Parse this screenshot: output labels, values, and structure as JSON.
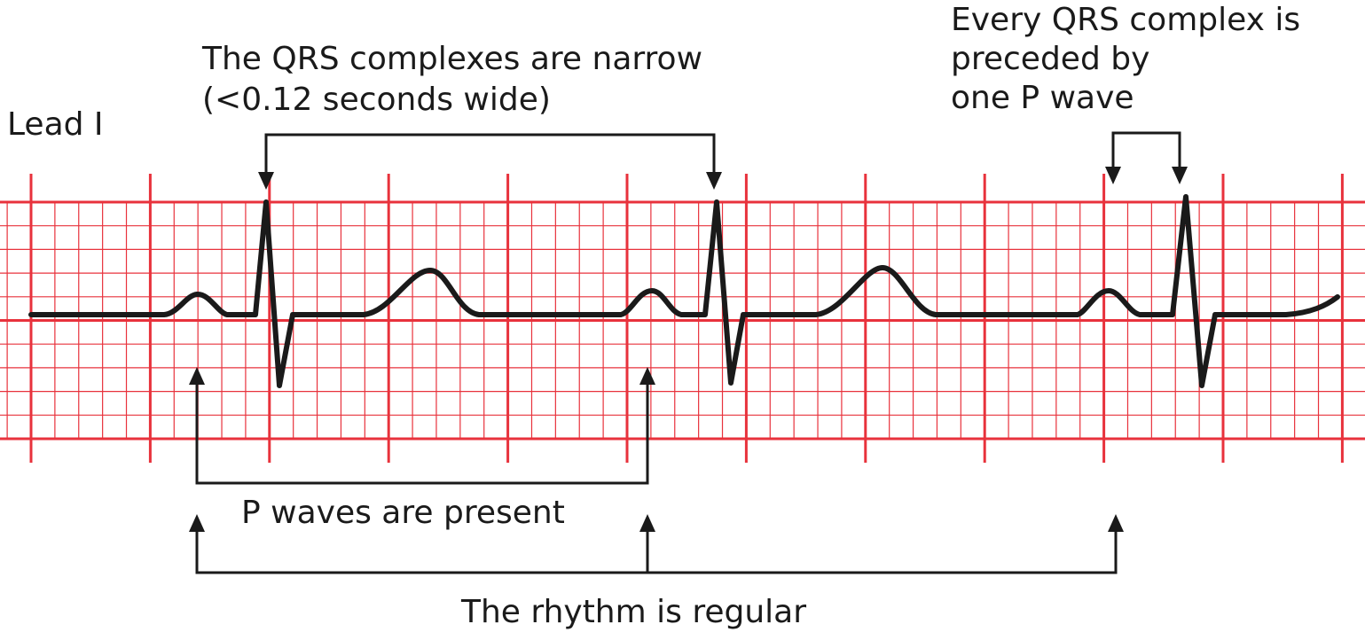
{
  "lead_label": "Lead I",
  "annotations": {
    "qrs_narrow": {
      "line1": "The QRS complexes are narrow",
      "line2": "(<0.12 seconds wide)"
    },
    "p_before_qrs": {
      "line1": "Every QRS complex is",
      "line2": "preceded by",
      "line3": "one P wave"
    },
    "p_present": "P waves are present",
    "rhythm_regular": "The rhythm is regular"
  },
  "colors": {
    "grid": "#e8323c",
    "trace": "#1a1a1a",
    "text": "#1a1a1a"
  }
}
